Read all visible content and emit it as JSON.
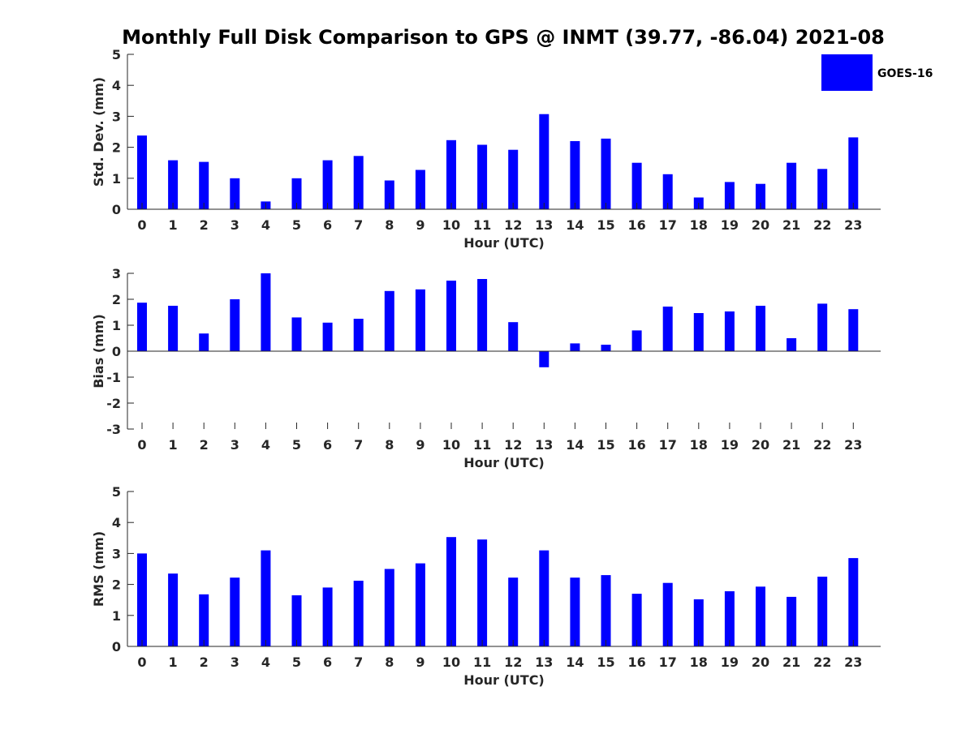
{
  "title": "Monthly Full Disk Comparison to GPS @ INMT (39.77, -86.04) 2021-08",
  "legend": {
    "label": "GOES-16",
    "color": "#0000ff"
  },
  "chart_data": [
    {
      "type": "bar",
      "title": "Monthly Full Disk Comparison to GPS @ INMT (39.77, -86.04) 2021-08",
      "xlabel": "Hour (UTC)",
      "ylabel": "Std. Dev. (mm)",
      "ylim": [
        0,
        5
      ],
      "yticks": [
        "0",
        "1",
        "2",
        "3",
        "4",
        "5"
      ],
      "categories": [
        "0",
        "1",
        "2",
        "3",
        "4",
        "5",
        "6",
        "7",
        "8",
        "9",
        "10",
        "11",
        "12",
        "13",
        "14",
        "15",
        "16",
        "17",
        "18",
        "19",
        "20",
        "21",
        "22",
        "23"
      ],
      "series": [
        {
          "name": "GOES-16",
          "values": [
            2.38,
            1.58,
            1.53,
            1.0,
            0.25,
            1.0,
            1.58,
            1.72,
            0.93,
            1.27,
            2.23,
            2.08,
            1.92,
            3.07,
            2.2,
            2.28,
            1.5,
            1.13,
            0.38,
            0.88,
            0.82,
            1.5,
            1.3,
            2.32
          ]
        }
      ]
    },
    {
      "type": "bar",
      "xlabel": "Hour (UTC)",
      "ylabel": "Bias (mm)",
      "ylim": [
        -3,
        3
      ],
      "yticks": [
        "-3",
        "-2",
        "-1",
        "0",
        "1",
        "2",
        "3"
      ],
      "categories": [
        "0",
        "1",
        "2",
        "3",
        "4",
        "5",
        "6",
        "7",
        "8",
        "9",
        "10",
        "11",
        "12",
        "13",
        "14",
        "15",
        "16",
        "17",
        "18",
        "19",
        "20",
        "21",
        "22",
        "23"
      ],
      "series": [
        {
          "name": "GOES-16",
          "values": [
            1.87,
            1.75,
            0.68,
            2.0,
            3.0,
            1.3,
            1.1,
            1.25,
            2.32,
            2.38,
            2.72,
            2.78,
            1.12,
            -0.62,
            0.3,
            0.25,
            0.8,
            1.72,
            1.47,
            1.53,
            1.75,
            0.5,
            1.83,
            1.62
          ]
        }
      ]
    },
    {
      "type": "bar",
      "xlabel": "Hour (UTC)",
      "ylabel": "RMS (mm)",
      "ylim": [
        0,
        5
      ],
      "yticks": [
        "0",
        "1",
        "2",
        "3",
        "4",
        "5"
      ],
      "categories": [
        "0",
        "1",
        "2",
        "3",
        "4",
        "5",
        "6",
        "7",
        "8",
        "9",
        "10",
        "11",
        "12",
        "13",
        "14",
        "15",
        "16",
        "17",
        "18",
        "19",
        "20",
        "21",
        "22",
        "23"
      ],
      "series": [
        {
          "name": "GOES-16",
          "values": [
            3.0,
            2.35,
            1.68,
            2.22,
            3.1,
            1.65,
            1.9,
            2.12,
            2.5,
            2.68,
            3.53,
            3.45,
            2.22,
            3.1,
            2.22,
            2.3,
            1.7,
            2.05,
            1.52,
            1.78,
            1.93,
            1.6,
            2.25,
            2.85
          ]
        }
      ]
    }
  ]
}
